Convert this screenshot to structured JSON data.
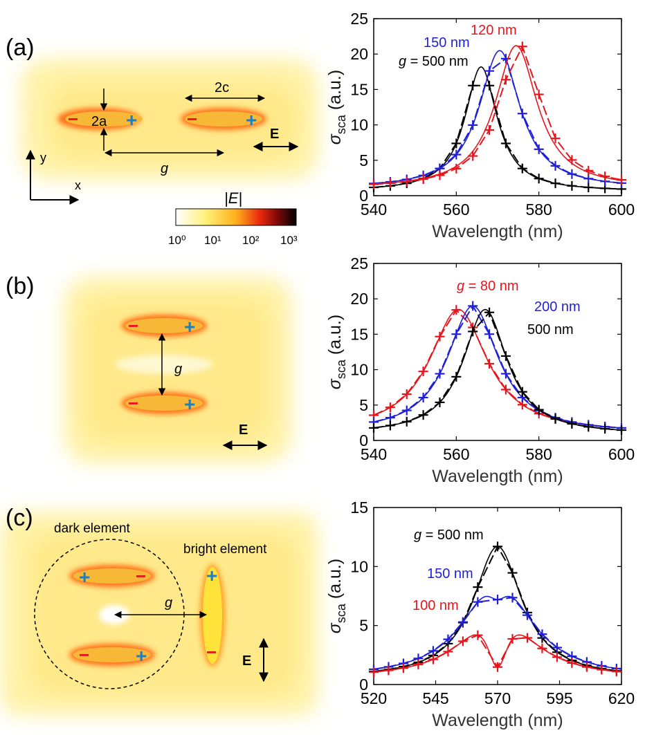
{
  "panels": {
    "a": {
      "label": "(a)",
      "annotations": {
        "width": "2a",
        "length": "2c",
        "gap": "g",
        "field": "E",
        "axis_y": "y",
        "axis_x": "x"
      },
      "colorbar": {
        "title": "|E|",
        "ticks": [
          "10⁰",
          "10¹",
          "10²",
          "10³"
        ]
      }
    },
    "b": {
      "label": "(b)",
      "annotations": {
        "gap": "g",
        "field": "E"
      }
    },
    "c": {
      "label": "(c)",
      "annotations": {
        "gap": "g",
        "field": "E",
        "dark": "dark element",
        "bright": "bright element"
      }
    }
  },
  "charges": {
    "minus": "−",
    "plus": "+"
  },
  "colors": {
    "red": "#e8141c",
    "blue": "#1f1fd8",
    "black": "#000000",
    "charge_red": "#e8141c",
    "charge_blue": "#1a7fc8"
  },
  "chart_data": [
    {
      "type": "line",
      "id": "a",
      "xlabel": "Wavelength (nm)",
      "ylabel": "σsca (a.u.)",
      "xlim": [
        540,
        600
      ],
      "ylim": [
        0,
        25
      ],
      "xticks": [
        540,
        560,
        580,
        600
      ],
      "yticks": [
        0,
        5,
        10,
        15,
        20,
        25
      ],
      "series": [
        {
          "name": "g = 500 nm",
          "label_text": "500 nm",
          "color": "black",
          "peak": 566,
          "height": 18.2,
          "width": 9.5,
          "floor": 0.6,
          "markers": [
            540,
            544,
            548,
            552,
            556,
            560,
            564,
            568,
            572,
            576,
            580,
            584,
            588,
            592,
            596,
            600
          ]
        },
        {
          "name": "150 nm",
          "label_text": "150 nm",
          "color": "blue",
          "peak": 570.5,
          "height": 20.5,
          "width": 12,
          "floor": 1.0,
          "markers": [
            540,
            544,
            548,
            552,
            556,
            560,
            564,
            568,
            572,
            576,
            580,
            584,
            588,
            592,
            596,
            600
          ]
        },
        {
          "name": "120 nm",
          "label_text": "120 nm",
          "color": "red",
          "peak": 574.5,
          "height": 21.2,
          "width": 12.5,
          "floor": 1.0,
          "shift": 1.0,
          "markers": [
            540,
            544,
            548,
            552,
            556,
            560,
            564,
            568,
            572,
            576,
            580,
            584,
            588,
            592,
            596,
            600
          ]
        }
      ]
    },
    {
      "type": "line",
      "id": "b",
      "xlabel": "Wavelength (nm)",
      "ylabel": "σsca (a.u.)",
      "xlim": [
        540,
        600
      ],
      "ylim": [
        0,
        25
      ],
      "xticks": [
        540,
        560,
        580,
        600
      ],
      "yticks": [
        0,
        5,
        10,
        15,
        20,
        25
      ],
      "series": [
        {
          "name": "g = 80 nm",
          "label_text": "80 nm",
          "color": "red",
          "peak": 560.5,
          "height": 18.5,
          "width": 17,
          "floor": 1.0,
          "markers": [
            540,
            544,
            548,
            552,
            556,
            560,
            564,
            568,
            572,
            576,
            580,
            584,
            588,
            592,
            596,
            600
          ]
        },
        {
          "name": "200 nm",
          "label_text": "200 nm",
          "color": "blue",
          "peak": 564,
          "height": 19,
          "width": 15,
          "floor": 1.0,
          "markers": [
            540,
            544,
            548,
            552,
            556,
            560,
            564,
            568,
            572,
            576,
            580,
            584,
            588,
            592,
            596,
            600
          ]
        },
        {
          "name": "500 nm",
          "label_text": "500 nm",
          "color": "black",
          "peak": 567,
          "height": 18.5,
          "width": 13,
          "floor": 0.8,
          "markers": [
            540,
            544,
            548,
            552,
            556,
            560,
            564,
            568,
            572,
            576,
            580,
            584,
            588,
            592,
            596,
            600
          ]
        }
      ]
    },
    {
      "type": "line",
      "id": "c",
      "xlabel": "Wavelength (nm)",
      "ylabel": "σsca (a.u.)",
      "xlim": [
        520,
        620
      ],
      "ylim": [
        0,
        15
      ],
      "xticks": [
        520,
        545,
        570,
        595,
        620
      ],
      "yticks": [
        0,
        5,
        10,
        15
      ],
      "series": [
        {
          "name": "g = 500 nm",
          "label_text": "500 nm",
          "color": "black",
          "peak": 570,
          "height": 11.7,
          "width": 24,
          "floor": 0.5,
          "dip": 0,
          "markers": [
            520,
            526,
            532,
            538,
            544,
            550,
            556,
            562,
            570,
            576,
            582,
            588,
            594,
            600,
            606,
            612,
            618
          ]
        },
        {
          "name": "150 nm",
          "label_text": "150 nm",
          "color": "blue",
          "peak": 570,
          "height": 9.6,
          "width": 31,
          "floor": 0.5,
          "dip": 0.25,
          "markers": [
            520,
            526,
            532,
            538,
            544,
            550,
            556,
            562,
            570,
            576,
            582,
            588,
            594,
            600,
            606,
            612,
            618
          ]
        },
        {
          "name": "100 nm",
          "label_text": "100 nm",
          "color": "red",
          "peak": 570,
          "height": 7.4,
          "width": 30,
          "floor": 0.5,
          "dip": 0.8,
          "markers": [
            520,
            526,
            532,
            538,
            544,
            550,
            556,
            562,
            570,
            576,
            582,
            588,
            594,
            600,
            606,
            612,
            618
          ]
        }
      ]
    }
  ]
}
